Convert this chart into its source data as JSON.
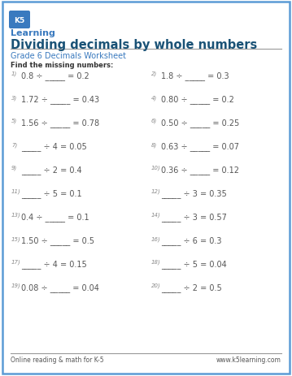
{
  "title": "Dividing decimals by whole numbers",
  "subtitle": "Grade 6 Decimals Worksheet",
  "instruction": "Find the missing numbers:",
  "title_color": "#1a5276",
  "subtitle_color": "#3a7abf",
  "instruction_color": "#333333",
  "footer_left": "Online reading & math for K-5",
  "footer_right": "www.k5learning.com",
  "border_color": "#5b9bd5",
  "background": "#ffffff",
  "text_color": "#555555",
  "left_nums": [
    "1)",
    "3)",
    "5)",
    "7)",
    "9)",
    "11)",
    "13)",
    "15)",
    "17)",
    "19)"
  ],
  "right_nums": [
    "2)",
    "4)",
    "6)",
    "8)",
    "10)",
    "12)",
    "14)",
    "16)",
    "18)",
    "20)"
  ],
  "left_expressions": [
    "0.8 ÷ _____ = 0.2",
    "1.72 ÷ _____ = 0.43",
    "1.56 ÷ _____ = 0.78",
    "_____ ÷ 4 = 0.05",
    "_____ ÷ 2 = 0.4",
    "_____ ÷ 5 = 0.1",
    "0.4 ÷ _____ = 0.1",
    "1.50 ÷ _____ = 0.5",
    "_____ ÷ 4 = 0.15",
    "0.08 ÷ _____ = 0.04"
  ],
  "right_expressions": [
    "1.8 ÷ _____ = 0.3",
    "0.80 ÷ _____ = 0.2",
    "0.50 ÷ _____ = 0.25",
    "0.63 ÷ _____ = 0.07",
    "0.36 ÷ _____ = 0.12",
    "_____ ÷ 3 = 0.35",
    "_____ ÷ 3 = 0.57",
    "_____ ÷ 6 = 0.3",
    "_____ ÷ 5 = 0.04",
    "_____ ÷ 2 = 0.5"
  ]
}
